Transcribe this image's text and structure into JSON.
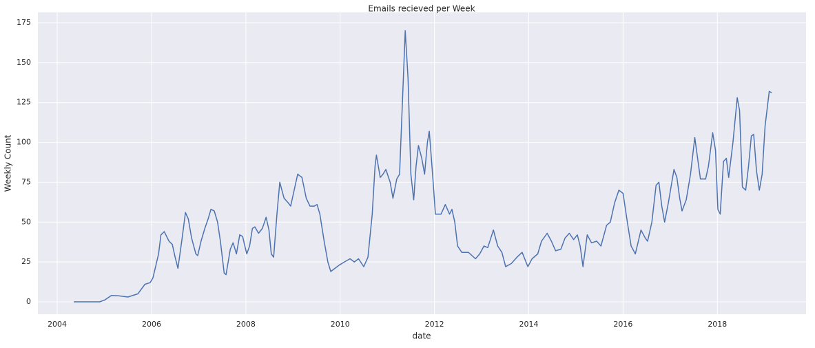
{
  "chart_data": {
    "type": "line",
    "title": "Emails recieved per Week",
    "xlabel": "date",
    "ylabel": "Weekly Count",
    "color": "#4c72b0",
    "grid": true,
    "xlim": [
      2003.59,
      2019.88
    ],
    "ylim": [
      -7.8,
      181.5
    ],
    "xticks": [
      2004,
      2006,
      2008,
      2010,
      2012,
      2014,
      2016,
      2018
    ],
    "yticks": [
      0,
      25,
      50,
      75,
      100,
      125,
      150,
      175
    ],
    "x": [
      2004.35,
      2004.6,
      2004.9,
      2005.0,
      2005.15,
      2005.3,
      2005.5,
      2005.71,
      2005.86,
      2005.97,
      2006.03,
      2006.15,
      2006.2,
      2006.27,
      2006.37,
      2006.44,
      2006.5,
      2006.56,
      2006.65,
      2006.72,
      2006.78,
      2006.85,
      2006.94,
      2006.98,
      2007.05,
      2007.13,
      2007.2,
      2007.26,
      2007.33,
      2007.4,
      2007.46,
      2007.54,
      2007.58,
      2007.67,
      2007.73,
      2007.8,
      2007.87,
      2007.93,
      2008.02,
      2008.08,
      2008.14,
      2008.19,
      2008.27,
      2008.35,
      2008.43,
      2008.49,
      2008.54,
      2008.59,
      2008.66,
      2008.72,
      2008.81,
      2008.9,
      2008.95,
      2009.04,
      2009.1,
      2009.19,
      2009.28,
      2009.36,
      2009.45,
      2009.51,
      2009.57,
      2009.66,
      2009.74,
      2009.8,
      2009.89,
      2009.98,
      2010.09,
      2010.21,
      2010.3,
      2010.39,
      2010.5,
      2010.59,
      2010.68,
      2010.74,
      2010.77,
      2010.85,
      2010.91,
      2010.97,
      2011.06,
      2011.12,
      2011.2,
      2011.26,
      2011.32,
      2011.38,
      2011.44,
      2011.5,
      2011.56,
      2011.61,
      2011.66,
      2011.73,
      2011.79,
      2011.85,
      2011.89,
      2011.96,
      2012.02,
      2012.14,
      2012.23,
      2012.32,
      2012.37,
      2012.43,
      2012.49,
      2012.58,
      2012.72,
      2012.87,
      2012.96,
      2013.05,
      2013.13,
      2013.25,
      2013.34,
      2013.43,
      2013.51,
      2013.63,
      2013.75,
      2013.86,
      2013.98,
      2014.07,
      2014.19,
      2014.27,
      2014.39,
      2014.48,
      2014.57,
      2014.68,
      2014.77,
      2014.86,
      2014.95,
      2015.03,
      2015.09,
      2015.15,
      2015.24,
      2015.33,
      2015.44,
      2015.53,
      2015.65,
      2015.73,
      2015.82,
      2015.91,
      2016.0,
      2016.09,
      2016.17,
      2016.26,
      2016.38,
      2016.47,
      2016.52,
      2016.61,
      2016.7,
      2016.76,
      2016.82,
      2016.88,
      2016.96,
      2017.08,
      2017.14,
      2017.2,
      2017.25,
      2017.34,
      2017.43,
      2017.52,
      2017.58,
      2017.64,
      2017.75,
      2017.81,
      2017.9,
      2017.96,
      2018.01,
      2018.06,
      2018.13,
      2018.19,
      2018.24,
      2018.33,
      2018.42,
      2018.47,
      2018.53,
      2018.6,
      2018.66,
      2018.72,
      2018.77,
      2018.83,
      2018.89,
      2018.95,
      2019.01,
      2019.1,
      2019.15
    ],
    "values": [
      0,
      0,
      0,
      1,
      4,
      3.8,
      3,
      5,
      11,
      12,
      15,
      30,
      42,
      44,
      38,
      36,
      28,
      21,
      40,
      56,
      52,
      40,
      30,
      29,
      38,
      46,
      52,
      58,
      57,
      50,
      38,
      18,
      17,
      33,
      37,
      30,
      42,
      41,
      30,
      35,
      46,
      47,
      43,
      46,
      53,
      45,
      30,
      28,
      55,
      75,
      65,
      62,
      60,
      72,
      80,
      78,
      65,
      60,
      60,
      61,
      55,
      38,
      25,
      19,
      21,
      23,
      25,
      27,
      25,
      27,
      22,
      28,
      55,
      85,
      92,
      78,
      80,
      83,
      75,
      65,
      77,
      80,
      125,
      170,
      140,
      80,
      64,
      85,
      98,
      90,
      80,
      100,
      107,
      80,
      55,
      55,
      61,
      55,
      58,
      50,
      35,
      31,
      31,
      27,
      30,
      35,
      34,
      45,
      35,
      31,
      22,
      24,
      28,
      31,
      22,
      27,
      30,
      38,
      43,
      38,
      32,
      33,
      40,
      43,
      39,
      42,
      35,
      22,
      42,
      37,
      38,
      35,
      48,
      50,
      62,
      70,
      68,
      50,
      35,
      30,
      45,
      40,
      38,
      50,
      73,
      75,
      60,
      50,
      62,
      83,
      78,
      65,
      57,
      64,
      80,
      103,
      90,
      77,
      77,
      85,
      106,
      95,
      58,
      55,
      88,
      90,
      78,
      100,
      128,
      120,
      72,
      70,
      85,
      104,
      105,
      82,
      70,
      80,
      110,
      132,
      131
    ]
  }
}
